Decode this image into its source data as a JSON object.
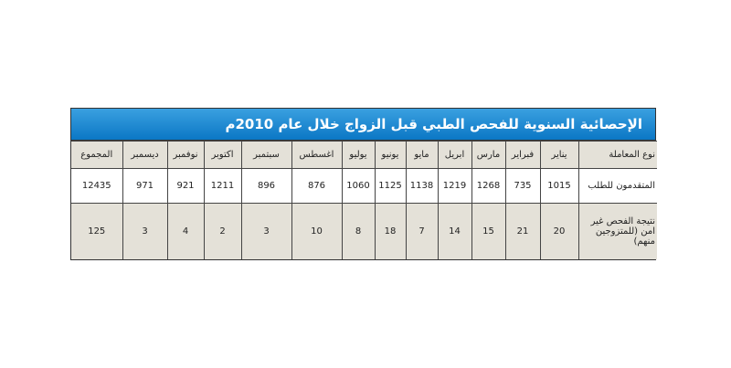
{
  "title": "الإحصائية السنوية للفحص الطبي قبل الزواج خلال عام 2010م",
  "table": {
    "header": [
      "نوع المعاملة",
      "يناير",
      "فبراير",
      "مارس",
      "ابريل",
      "مايو",
      "يونيو",
      "يوليو",
      "اغسطس",
      "سبتمبر",
      "اكتوبر",
      "نوفمبر",
      "ديسمبر",
      "المجموع"
    ],
    "rows": [
      [
        "المتقدمون للطلب",
        1015,
        735,
        1268,
        1219,
        1138,
        1125,
        1060,
        876,
        896,
        1211,
        921,
        971,
        12435
      ],
      [
        "نتيجة الفحص غير امن (للمتزوجين منهم)",
        20,
        21,
        15,
        14,
        7,
        18,
        8,
        10,
        3,
        2,
        4,
        3,
        125
      ]
    ]
  }
}
